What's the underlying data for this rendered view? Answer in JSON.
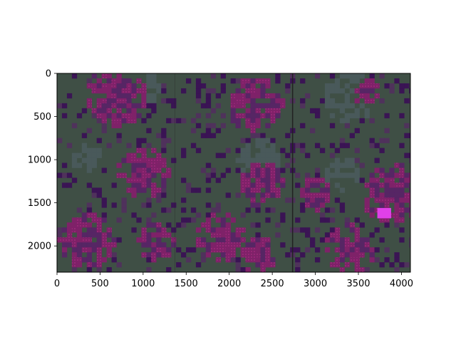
{
  "chart_data": {
    "type": "heatmap",
    "title": "",
    "xlabel": "",
    "ylabel": "",
    "xlim": [
      0,
      4104
    ],
    "ylim": [
      2304,
      0
    ],
    "x_ticks": [
      0,
      500,
      1000,
      1500,
      2000,
      2500,
      3000,
      3500,
      4000
    ],
    "y_ticks": [
      0,
      500,
      1000,
      1500,
      2000
    ],
    "grid": false,
    "colors": {
      "background_forest": "#3f4f45",
      "background_grey": "#4a5a5c",
      "overlay_magenta": "#8a1a6e",
      "overlay_purple": "#5a1f6a",
      "overlay_dark_purple": "#3a0d55",
      "seam_line": "#222222"
    },
    "panels": [
      {
        "x_range": [
          0,
          1368
        ],
        "y_range": [
          0,
          2304
        ]
      },
      {
        "x_range": [
          1368,
          2736
        ],
        "y_range": [
          0,
          2304
        ]
      },
      {
        "x_range": [
          2736,
          4104
        ],
        "y_range": [
          0,
          2304
        ]
      }
    ]
  }
}
